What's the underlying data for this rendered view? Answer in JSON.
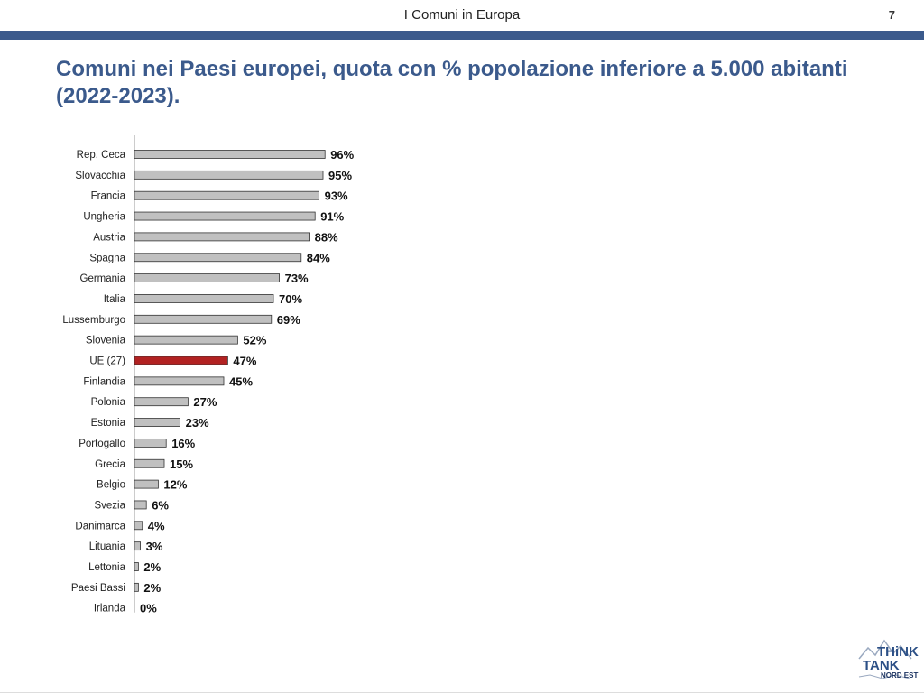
{
  "header": {
    "title": "I Comuni in Europa",
    "page_number": "7"
  },
  "slide": {
    "title": "Comuni nei Paesi europei, quota con % popolazione inferiore a 5.000 abitanti (2022-2023)."
  },
  "colors": {
    "accent": "#3b5a8c",
    "bar": "#c0c0c0",
    "highlight": "#b22222"
  },
  "logo": {
    "line1": "THiNK",
    "line2": "TANK",
    "line3": "NORD EST"
  },
  "chart_data": {
    "type": "bar",
    "orientation": "horizontal",
    "categories": [
      "Rep. Ceca",
      "Slovacchia",
      "Francia",
      "Ungheria",
      "Austria",
      "Spagna",
      "Germania",
      "Italia",
      "Lussemburgo",
      "Slovenia",
      "UE (27)",
      "Finlandia",
      "Polonia",
      "Estonia",
      "Portogallo",
      "Grecia",
      "Belgio",
      "Svezia",
      "Danimarca",
      "Lituania",
      "Lettonia",
      "Paesi Bassi",
      "Irlanda"
    ],
    "values": [
      96,
      95,
      93,
      91,
      88,
      84,
      73,
      70,
      69,
      52,
      47,
      45,
      27,
      23,
      16,
      15,
      12,
      6,
      4,
      3,
      2,
      2,
      0
    ],
    "value_labels": [
      "96%",
      "95%",
      "93%",
      "91%",
      "88%",
      "84%",
      "73%",
      "70%",
      "69%",
      "52%",
      "47%",
      "45%",
      "27%",
      "23%",
      "16%",
      "15%",
      "12%",
      "6%",
      "4%",
      "3%",
      "2%",
      "2%",
      "0%"
    ],
    "highlight": "UE (27)",
    "xlim": [
      0,
      100
    ],
    "grid": false
  }
}
